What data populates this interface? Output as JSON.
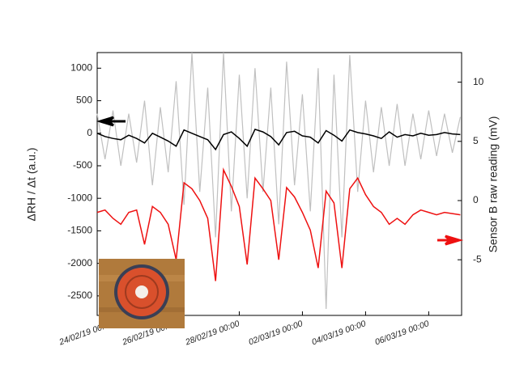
{
  "chart_data": {
    "type": "line",
    "y_label": "ΔRH / Δt (a.u.)",
    "y2_label": "Sensor B raw reading (mV)",
    "x": [
      "23/02/19 12:00",
      "23/02/19 18:00",
      "24/02/19 00:00",
      "24/02/19 06:00",
      "24/02/19 12:00",
      "24/02/19 18:00",
      "25/02/19 00:00",
      "25/02/19 06:00",
      "25/02/19 12:00",
      "25/02/19 18:00",
      "26/02/19 00:00",
      "26/02/19 06:00",
      "26/02/19 12:00",
      "26/02/19 18:00",
      "27/02/19 00:00",
      "27/02/19 06:00",
      "27/02/19 12:00",
      "27/02/19 18:00",
      "28/02/19 00:00",
      "28/02/19 06:00",
      "28/02/19 12:00",
      "28/02/19 18:00",
      "01/03/19 00:00",
      "01/03/19 06:00",
      "01/03/19 12:00",
      "01/03/19 18:00",
      "02/03/19 00:00",
      "02/03/19 06:00",
      "02/03/19 12:00",
      "02/03/19 18:00",
      "03/03/19 00:00",
      "03/03/19 06:00",
      "03/03/19 12:00",
      "03/03/19 18:00",
      "04/03/19 00:00",
      "04/03/19 06:00",
      "04/03/19 12:00",
      "04/03/19 18:00",
      "05/03/19 00:00",
      "05/03/19 06:00",
      "05/03/19 12:00",
      "05/03/19 18:00",
      "06/03/19 00:00",
      "06/03/19 06:00",
      "06/03/19 12:00",
      "06/03/19 18:00",
      "07/03/19 00:00"
    ],
    "series": [
      {
        "color": "#c0c0c0",
        "axis": "y",
        "values": [
          300,
          -400,
          350,
          -500,
          300,
          -450,
          500,
          -800,
          400,
          -600,
          800,
          -1100,
          1240,
          -900,
          700,
          -1600,
          1240,
          -1200,
          900,
          -1000,
          1000,
          -900,
          700,
          -1400,
          1100,
          -800,
          600,
          -1200,
          1000,
          -2700,
          900,
          -1600,
          1200,
          -900,
          500,
          -600,
          400,
          -500,
          450,
          -500,
          300,
          -400,
          350,
          -350,
          300,
          -300,
          250
        ]
      },
      {
        "color": "#000000",
        "axis": "y",
        "values": [
          0,
          -50,
          -80,
          -100,
          -30,
          -80,
          -150,
          0,
          -60,
          -120,
          -200,
          50,
          0,
          -50,
          -100,
          -250,
          -20,
          20,
          -80,
          -200,
          60,
          20,
          -50,
          -180,
          10,
          30,
          -40,
          -60,
          -150,
          40,
          -30,
          -120,
          50,
          10,
          -10,
          -40,
          -80,
          20,
          -60,
          -20,
          -40,
          0,
          -30,
          -20,
          10,
          -10,
          -20
        ]
      },
      {
        "color": "#ee1111",
        "axis": "y2",
        "values": [
          -1.0,
          -0.8,
          -1.5,
          -2.0,
          -1.0,
          -0.8,
          -3.7,
          -0.5,
          -1.0,
          -2.0,
          -5.0,
          1.5,
          1.0,
          0.0,
          -1.5,
          -6.8,
          2.6,
          1.2,
          -0.5,
          -5.4,
          1.9,
          1.0,
          0.0,
          -5.0,
          1.1,
          0.3,
          -1.0,
          -2.5,
          -5.7,
          0.8,
          -0.2,
          -5.7,
          1.0,
          1.9,
          0.5,
          -0.5,
          -1.0,
          -2.0,
          -1.5,
          -2.0,
          -1.2,
          -0.8,
          -1.0,
          -1.2,
          -1.0,
          -1.1,
          -1.2
        ]
      }
    ],
    "xlim": [
      "23/02/19 12:00",
      "07/03/19 01:00"
    ],
    "xticks": [
      "24/02/19 00:00",
      "26/02/19 00:00",
      "28/02/19 00:00",
      "02/03/19 00:00",
      "04/03/19 00:00",
      "06/03/19 00:00"
    ],
    "ylim": [
      -2800,
      1240
    ],
    "yticks": [
      1000,
      500,
      0,
      -500,
      -1000,
      -1500,
      -2000,
      -2500
    ],
    "y2lim": [
      -9.7,
      12.5
    ],
    "y2ticks": [
      10,
      5,
      0,
      -5
    ]
  }
}
